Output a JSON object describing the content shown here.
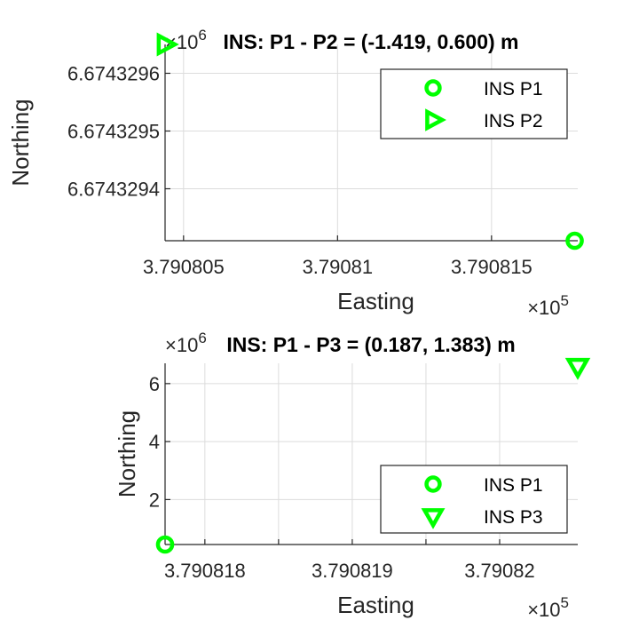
{
  "chart_data": [
    {
      "type": "scatter",
      "title": "INS: P1 - P2 =  (-1.419, 0.600) m",
      "xlabel": "Easting",
      "ylabel": "Northing",
      "x_exponent": "×10",
      "x_exponent_power": "5",
      "y_exponent": "×10",
      "y_exponent_power": "6",
      "xlim": [
        3.7908044,
        3.7908178
      ],
      "ylim": [
        6.67432931,
        6.67432965
      ],
      "x_ticks": [
        3.790805,
        3.79081,
        3.790815
      ],
      "x_tick_labels": [
        "3.790805",
        "3.79081",
        "3.790815"
      ],
      "y_ticks": [
        6.6743294,
        6.6743295,
        6.6743296
      ],
      "y_tick_labels": [
        "6.6743294",
        "6.6743295",
        "6.6743296"
      ],
      "grid": true,
      "legend_placement": "top-right",
      "series": [
        {
          "name": "INS P1",
          "marker": "circle",
          "color": "#00ff00",
          "x": [
            3.7908177
          ],
          "y": [
            6.67432931
          ]
        },
        {
          "name": "INS P2",
          "marker": "triangle-right",
          "color": "#00ff00",
          "x": [
            3.7908044
          ],
          "y": [
            6.67432965
          ]
        }
      ]
    },
    {
      "type": "scatter",
      "title": "INS: P1 - P3 = (0.187, 1.383) m",
      "xlabel": "Easting",
      "ylabel": "Northing",
      "x_exponent": "×10",
      "x_exponent_power": "5",
      "y_exponent": "×10",
      "y_exponent_power": "6",
      "xlim": [
        3.79081773,
        3.79082053
      ],
      "ylim": [
        0.45,
        6.7
      ],
      "x_ticks": [
        3.790818,
        3.790819,
        3.79082
      ],
      "x_tick_labels": [
        "3.790818",
        "3.790819",
        "3.79082"
      ],
      "x_minor_ticks": [
        3.7908185,
        3.7908195
      ],
      "y_ticks": [
        2,
        4,
        6
      ],
      "y_tick_labels": [
        "2",
        "4",
        "6"
      ],
      "grid": true,
      "legend_placement": "bottom-right",
      "series": [
        {
          "name": "INS P1",
          "marker": "circle",
          "color": "#00ff00",
          "x": [
            3.79081773
          ],
          "y": [
            0.45
          ]
        },
        {
          "name": "INS P3",
          "marker": "triangle-down",
          "color": "#00ff00",
          "x": [
            3.79082053
          ],
          "y": [
            6.6
          ]
        }
      ]
    }
  ]
}
